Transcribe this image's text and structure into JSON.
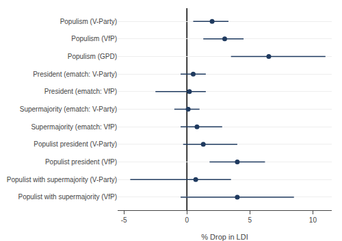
{
  "chart_data": {
    "type": "forest",
    "categories": [
      "Populism (V-Party)",
      "Populism (VfP)",
      "Populism (GPD)",
      "President (ematch: V-Party)",
      "President (ematch: VfP)",
      "Supermajority (ematch: V-Party)",
      "Supermajority (ematch: VfP)",
      "Populist president (V-Party)",
      "Populist president (VfP)",
      "Populist with supermajority (V-Party)",
      "Populist with supermajority (VfP)"
    ],
    "values": [
      2.0,
      3.0,
      6.5,
      0.5,
      0.2,
      0.1,
      0.8,
      1.3,
      4.0,
      0.7,
      4.0
    ],
    "ci_lower": [
      0.5,
      1.3,
      3.5,
      -0.5,
      -2.5,
      -1.0,
      -0.5,
      -0.3,
      1.8,
      -4.5,
      -0.5
    ],
    "ci_upper": [
      3.3,
      4.5,
      11.0,
      1.5,
      1.5,
      1.0,
      2.8,
      4.0,
      6.2,
      3.5,
      8.5
    ],
    "color": "#1f3a5f",
    "xlabel": "% Drop in LDI",
    "xlim": [
      -5.5,
      11.5
    ],
    "xticks": [
      -5,
      0,
      5,
      10
    ],
    "reference_line": 0,
    "grid": true
  }
}
